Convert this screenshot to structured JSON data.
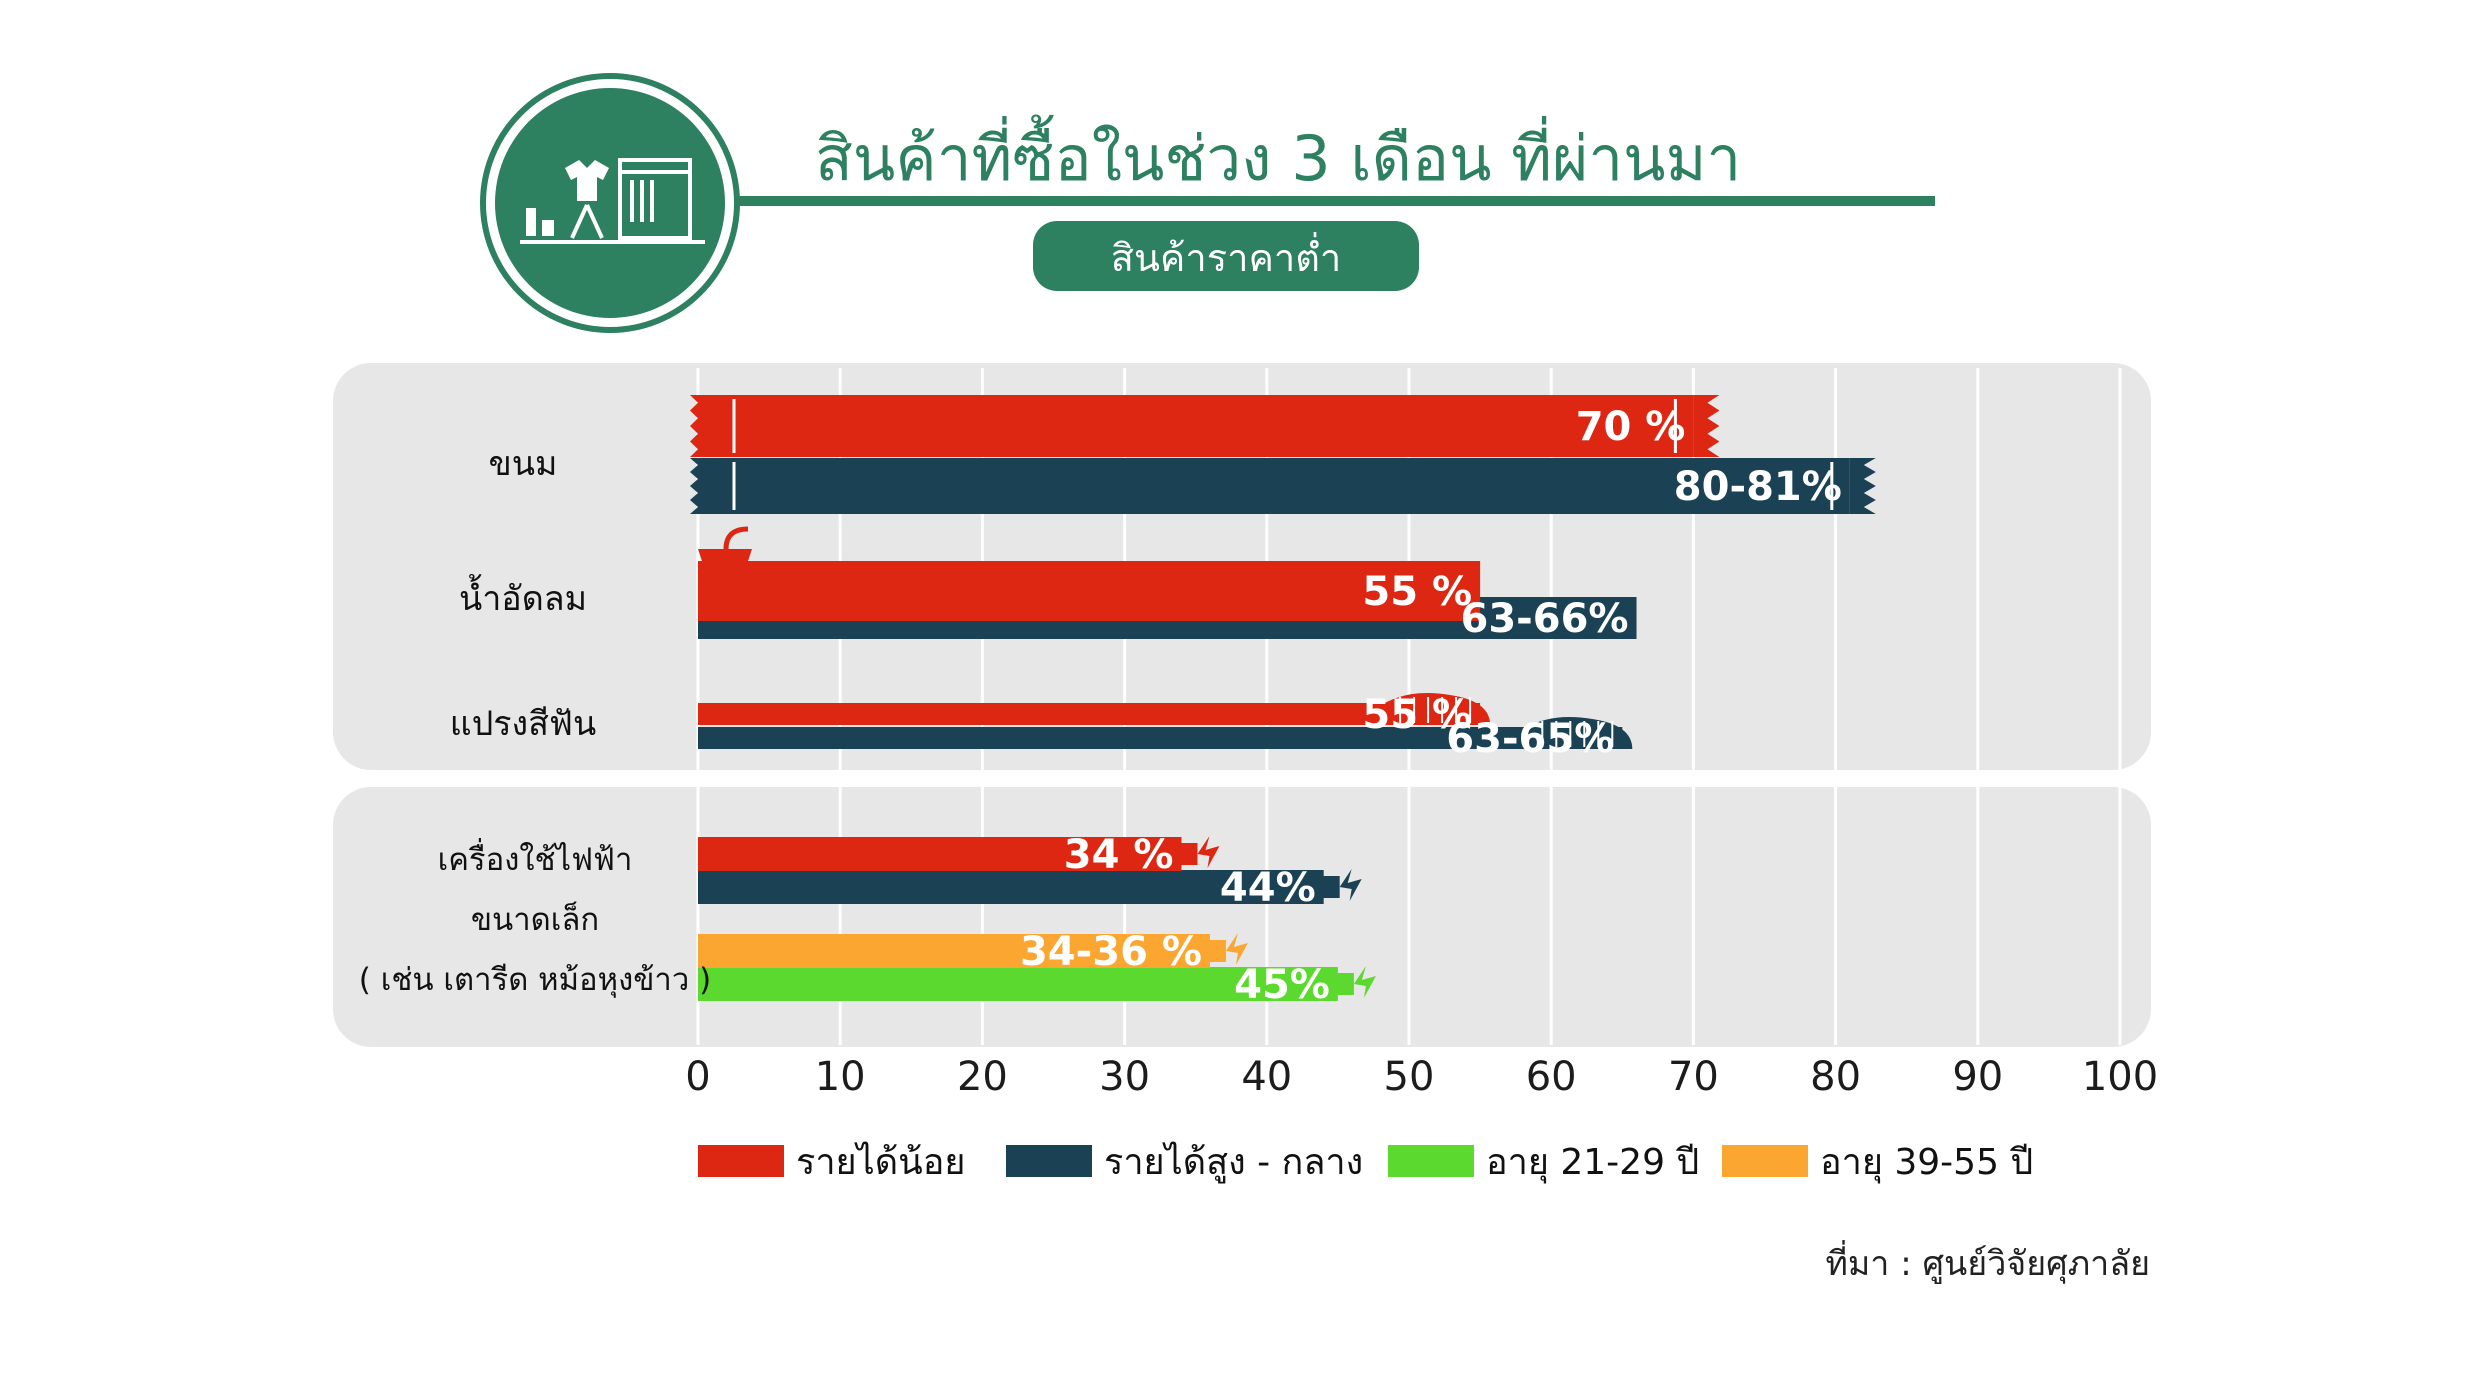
{
  "header": {
    "title": "สินค้าที่ซื้อในช่วง 3 เดือน ที่ผ่านมา",
    "subtitle": "สินค้าราคาต่ำ",
    "icon": "clothing-store-icon"
  },
  "colors": {
    "low_income": "#dd2713",
    "high_mid_income": "#1a4254",
    "age_21_29": "#5cd92e",
    "age_39_55": "#fba631",
    "brand_green": "#2d8060",
    "panel_bg": "#e6e7e6"
  },
  "chart_data": {
    "type": "bar",
    "orientation": "horizontal",
    "xlim": [
      0,
      100
    ],
    "xticks": [
      "0",
      "10",
      "20",
      "30",
      "40",
      "50",
      "60",
      "70",
      "80",
      "90",
      "100"
    ],
    "grid": true,
    "legend_position": "bottom",
    "legend": [
      "รายได้น้อย",
      "รายได้สูง - กลาง",
      "อายุ 21-29 ปี",
      "อายุ 39-55 ปี"
    ],
    "groups": [
      {
        "category": "ขนม",
        "series": [
          {
            "name": "รายได้น้อย",
            "value": 70,
            "label": "70 %"
          },
          {
            "name": "รายได้สูง - กลาง",
            "value": 81,
            "label": "80-81%"
          }
        ]
      },
      {
        "category": "น้ำอัดลม",
        "series": [
          {
            "name": "รายได้น้อย",
            "value": 55,
            "label": "55 %"
          },
          {
            "name": "รายได้สูง - กลาง",
            "value": 66,
            "label": "63-66%"
          }
        ]
      },
      {
        "category": "แปรงสีฟัน",
        "series": [
          {
            "name": "รายได้น้อย",
            "value": 55,
            "label": "55 %"
          },
          {
            "name": "รายได้สูง - กลาง",
            "value": 65,
            "label": "63-65%"
          }
        ]
      },
      {
        "category_lines": [
          "เครื่องใช้ไฟฟ้า",
          "ขนาดเล็ก",
          "( เช่น เตารีด หม้อหุงข้าว )"
        ],
        "series": [
          {
            "name": "รายได้น้อย",
            "value": 34,
            "label": "34 %"
          },
          {
            "name": "รายได้สูง - กลาง",
            "value": 44,
            "label": "44%"
          },
          {
            "name": "อายุ 39-55 ปี",
            "value": 36,
            "label": "34-36 %"
          },
          {
            "name": "อายุ 21-29 ปี",
            "value": 45,
            "label": "45%"
          }
        ]
      }
    ]
  },
  "source": "ที่มา : ศูนย์วิจัยศุภาลัย"
}
